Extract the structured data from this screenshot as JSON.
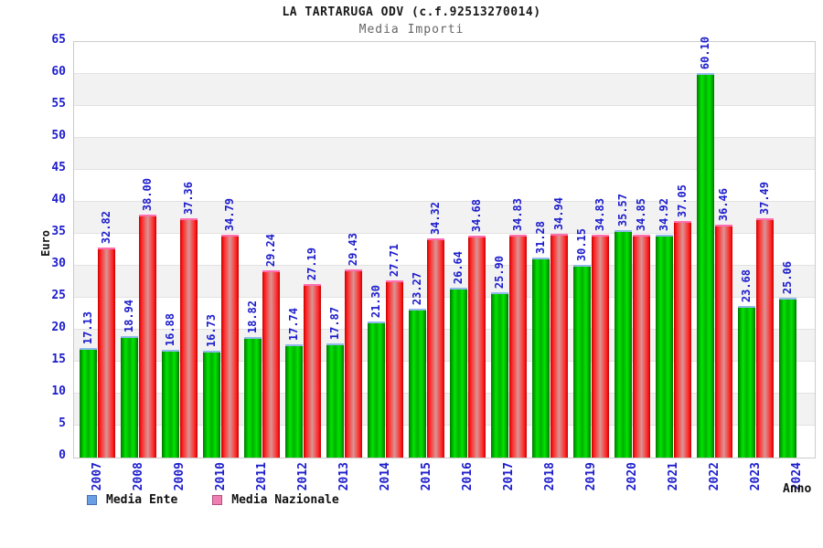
{
  "header": {
    "title": "LA TARTARUGA ODV (c.f.92513270014)",
    "subtitle": "Media Importi"
  },
  "axes": {
    "y_label": "Euro",
    "x_label": "Anno"
  },
  "legend": {
    "items": [
      {
        "label": "Media Ente",
        "swatch_color": "#6b9fe4"
      },
      {
        "label": "Media Nazionale",
        "swatch_color": "#ef7fb3"
      }
    ]
  },
  "chart_data": {
    "type": "bar",
    "title": "LA TARTARUGA ODV (c.f.92513270014)",
    "subtitle": "Media Importi",
    "xlabel": "Anno",
    "ylabel": "Euro",
    "ylim": [
      0,
      65
    ],
    "ytick_step": 5,
    "grid": "horizontal-bands-alternating",
    "legend_position": "bottom-left",
    "categories": [
      "2007",
      "2008",
      "2009",
      "2010",
      "2011",
      "2012",
      "2013",
      "2014",
      "2015",
      "2016",
      "2017",
      "2018",
      "2019",
      "2020",
      "2021",
      "2022",
      "2023",
      "2024"
    ],
    "series": [
      {
        "name": "Media Ente",
        "bar_style": "green",
        "cap_color": "#93b9ec",
        "values": [
          17.13,
          18.94,
          16.88,
          16.73,
          18.82,
          17.74,
          17.87,
          21.3,
          23.27,
          26.64,
          25.9,
          31.28,
          30.15,
          35.57,
          34.92,
          60.1,
          23.68,
          25.06
        ]
      },
      {
        "name": "Media Nazionale",
        "bar_style": "red",
        "cap_color": "#ff6eb0",
        "values": [
          32.82,
          38.0,
          37.36,
          34.79,
          29.24,
          27.19,
          29.43,
          27.71,
          34.32,
          34.68,
          34.83,
          34.94,
          34.83,
          34.85,
          37.05,
          36.46,
          37.49,
          null
        ]
      }
    ]
  },
  "colors": {
    "tick_text": "#1c1ccd",
    "band_gray": "#f2f2f2",
    "band_white": "#ffffff",
    "plot_border": "#cccccc",
    "green_bar": "#00cc00",
    "red_bar": "#ee2222"
  }
}
